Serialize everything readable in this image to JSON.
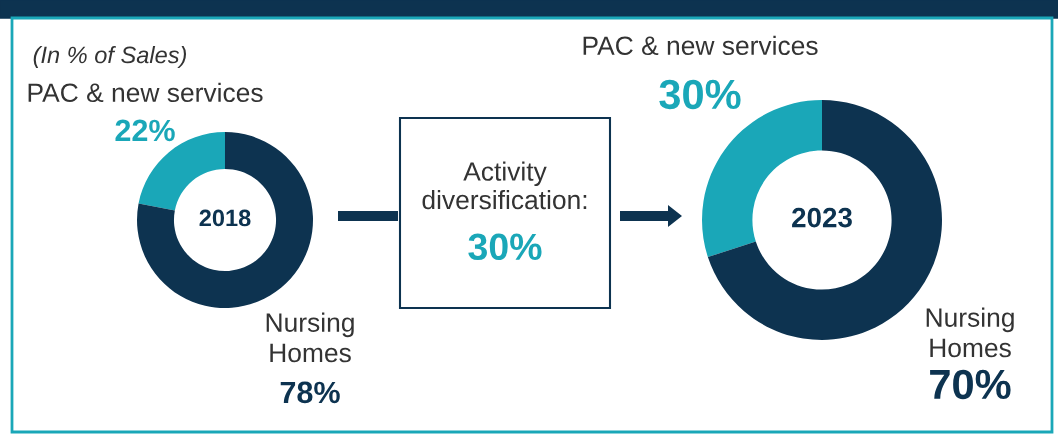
{
  "chart_data": [
    {
      "type": "donut",
      "title": "2018",
      "categories": [
        "PAC & new services",
        "Nursing\nHomes"
      ],
      "values": [
        22,
        78
      ],
      "colors": [
        "#1aa7b8",
        "#0d3350"
      ],
      "value_labels": [
        "22%",
        "78%"
      ],
      "annotations": [
        "(In % of Sales)"
      ]
    },
    {
      "type": "other",
      "annotations": [
        "Activity\ndiversification:",
        "30%"
      ]
    },
    {
      "type": "donut",
      "title": "2023",
      "categories": [
        "PAC & new services",
        "Nursing\nHomes"
      ],
      "values": [
        30,
        70
      ],
      "colors": [
        "#1aa7b8",
        "#0d3350"
      ],
      "value_labels": [
        "30%",
        "70%"
      ]
    }
  ]
}
